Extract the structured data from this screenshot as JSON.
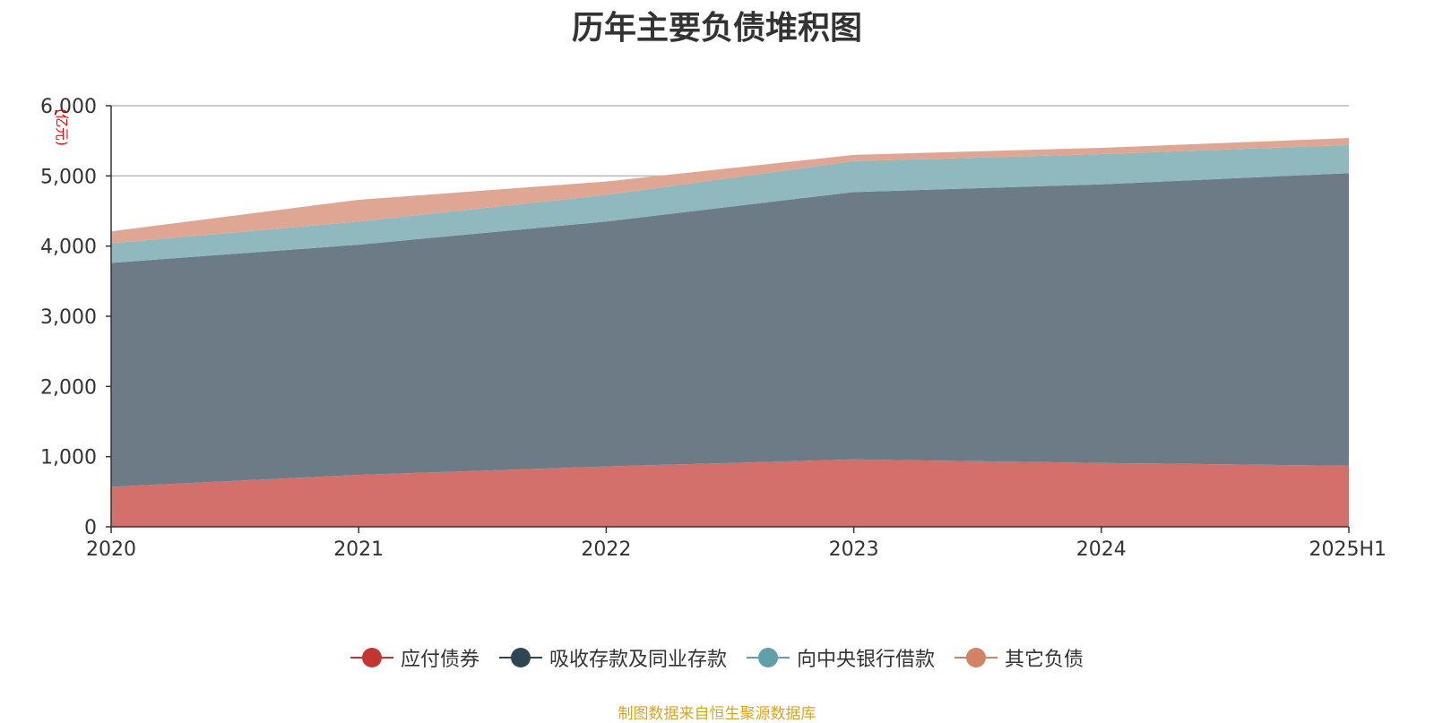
{
  "title": "历年主要负债堆积图",
  "source": "制图数据来自恒生聚源数据库",
  "chart_data": {
    "type": "area",
    "stacked": true,
    "categories": [
      "2020",
      "2021",
      "2022",
      "2023",
      "2024",
      "2025H1"
    ],
    "ylabel": "(亿元)",
    "ylim": [
      0,
      6000
    ],
    "yticks": [
      0,
      1000,
      2000,
      3000,
      4000,
      5000,
      6000
    ],
    "ytick_labels": [
      "0",
      "1,000",
      "2,000",
      "3,000",
      "4,000",
      "5,000",
      "6,000"
    ],
    "grid": true,
    "legend_position": "bottom",
    "series": [
      {
        "name": "应付债券",
        "color": "#c23531",
        "fill": "#d4706c",
        "values": [
          570,
          740,
          860,
          960,
          910,
          870
        ]
      },
      {
        "name": "吸收存款及同业存款",
        "color": "#2f4554",
        "fill": "#6d7b86",
        "values": [
          3190,
          3280,
          3490,
          3810,
          3970,
          4170
        ]
      },
      {
        "name": "向中央银行借款",
        "color": "#61a0a8",
        "fill": "#8fb9bf",
        "values": [
          280,
          330,
          380,
          440,
          430,
          400
        ]
      },
      {
        "name": "其它负债",
        "color": "#d48265",
        "fill": "#dfa793",
        "values": [
          170,
          310,
          190,
          90,
          90,
          100
        ]
      }
    ]
  }
}
